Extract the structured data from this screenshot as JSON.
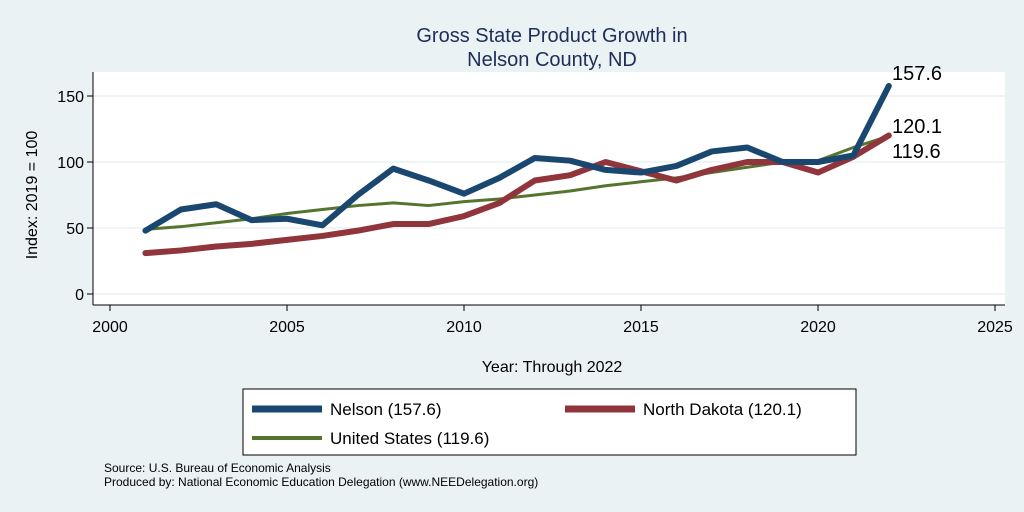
{
  "chart_data": {
    "type": "line",
    "title": "Gross State Product Growth in",
    "subtitle": "Nelson County, ND",
    "xlabel": "Year: Through 2022",
    "ylabel": "Index: 2019 = 100",
    "xlim": [
      2000,
      2025
    ],
    "ylim": [
      0,
      160
    ],
    "xticks": [
      2000,
      2005,
      2010,
      2015,
      2020,
      2025
    ],
    "yticks": [
      0,
      50,
      100,
      150
    ],
    "grid": true,
    "legend_position": "bottom",
    "x": [
      2001,
      2002,
      2003,
      2004,
      2005,
      2006,
      2007,
      2008,
      2009,
      2010,
      2011,
      2012,
      2013,
      2014,
      2015,
      2016,
      2017,
      2018,
      2019,
      2020,
      2021,
      2022
    ],
    "series": [
      {
        "name": "Nelson  (157.6)",
        "color": "#1a476f",
        "width": 6,
        "end_label": "157.6",
        "values": [
          48,
          64,
          68,
          56,
          57,
          52,
          75,
          95,
          86,
          76,
          88,
          103,
          101,
          94,
          92,
          97,
          108,
          111,
          100,
          100,
          105,
          157.6
        ]
      },
      {
        "name": "North Dakota (120.1)",
        "color": "#90353b",
        "width": 6,
        "end_label": "120.1",
        "values": [
          31,
          33,
          36,
          38,
          41,
          44,
          48,
          53,
          53,
          59,
          69,
          86,
          90,
          100,
          93,
          86,
          94,
          100,
          100,
          92,
          104,
          120.1
        ]
      },
      {
        "name": "United States (119.6)",
        "color": "#55752f",
        "width": 3,
        "end_label": "119.6",
        "values": [
          49,
          51,
          54,
          57,
          61,
          64,
          67,
          69,
          67,
          70,
          72,
          75,
          78,
          82,
          85,
          88,
          92,
          96,
          100,
          101,
          111,
          119.6
        ]
      }
    ]
  },
  "footer": {
    "source": "Source: U.S. Bureau of Economic Analysis",
    "produced": "Produced by: National Economic Education Delegation (www.NEEDelegation.org)"
  }
}
